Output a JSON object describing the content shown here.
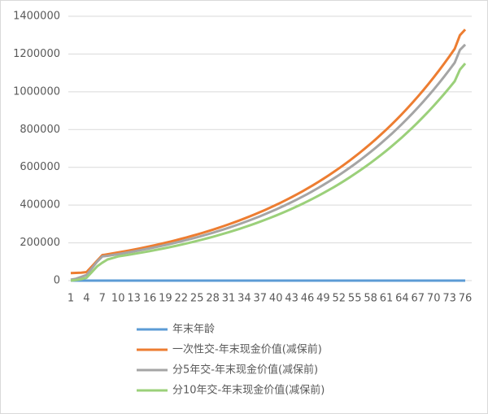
{
  "chart_data": {
    "type": "line",
    "categories": [
      1,
      null,
      null,
      4,
      null,
      null,
      7,
      null,
      null,
      10,
      null,
      null,
      13,
      null,
      null,
      16,
      null,
      null,
      19,
      null,
      null,
      22,
      null,
      null,
      25,
      null,
      null,
      28,
      null,
      null,
      31,
      null,
      null,
      34,
      null,
      null,
      37,
      null,
      null,
      40,
      null,
      null,
      43,
      null,
      null,
      46,
      null,
      null,
      49,
      null,
      null,
      52,
      null,
      null,
      55,
      null,
      null,
      58,
      null,
      null,
      61,
      null,
      null,
      64,
      null,
      null,
      67,
      null,
      null,
      70,
      null,
      null,
      73,
      null,
      null,
      76
    ],
    "ylim": [
      0,
      1400000
    ],
    "yticks": [
      0,
      200000,
      400000,
      600000,
      800000,
      1000000,
      1200000,
      1400000
    ],
    "grid": true,
    "series": [
      {
        "name": "年末年龄",
        "color": "#5b9bd5",
        "values": [
          1,
          2,
          3,
          4,
          5,
          6,
          7,
          8,
          9,
          10,
          11,
          12,
          13,
          14,
          15,
          16,
          17,
          18,
          19,
          20,
          21,
          22,
          23,
          24,
          25,
          26,
          27,
          28,
          29,
          30,
          31,
          32,
          33,
          34,
          35,
          36,
          37,
          38,
          39,
          40,
          41,
          42,
          43,
          44,
          45,
          46,
          47,
          48,
          49,
          50,
          51,
          52,
          53,
          54,
          55,
          56,
          57,
          58,
          59,
          60,
          61,
          62,
          63,
          64,
          65,
          66,
          67,
          68,
          69,
          70,
          71,
          72,
          73,
          74,
          75,
          76
        ]
      },
      {
        "name": "一次性交-年末现金价值(减保前)",
        "color": "#ed7d31",
        "values": [
          40000,
          41000,
          42000,
          45000,
          75000,
          105000,
          135000,
          139500,
          144200,
          149000,
          154000,
          159200,
          164500,
          170000,
          175700,
          181600,
          187700,
          194000,
          200500,
          207200,
          214100,
          221300,
          228700,
          236400,
          244300,
          252500,
          261000,
          269700,
          278700,
          288100,
          297700,
          307700,
          318000,
          328700,
          339700,
          351100,
          362800,
          375000,
          387500,
          400500,
          413900,
          427800,
          442100,
          456900,
          472200,
          488000,
          504400,
          521300,
          538700,
          556800,
          575400,
          594700,
          614600,
          635200,
          656500,
          678500,
          701200,
          724700,
          749000,
          774100,
          800000,
          826800,
          854500,
          883100,
          912700,
          943300,
          974900,
          1007600,
          1041300,
          1076200,
          1112300,
          1149500,
          1188000,
          1227800,
          1300000,
          1330000
        ]
      },
      {
        "name": "分5年交-年末现金价值(减保前)",
        "color": "#a5a5a5",
        "values": [
          5000,
          10000,
          20000,
          30000,
          65000,
          100000,
          128000,
          131100,
          135500,
          140100,
          144800,
          149600,
          154600,
          159800,
          165200,
          170700,
          176400,
          182400,
          188500,
          194800,
          201300,
          208000,
          215000,
          222200,
          229600,
          237400,
          245300,
          253500,
          262000,
          270800,
          279800,
          289200,
          298900,
          309000,
          319300,
          330000,
          341000,
          352500,
          364300,
          376500,
          389100,
          402100,
          415600,
          429500,
          443900,
          458700,
          474100,
          490000,
          506400,
          523400,
          540900,
          559000,
          577700,
          597100,
          617100,
          637800,
          659100,
          681200,
          704100,
          727700,
          752000,
          777200,
          803200,
          830100,
          857900,
          886700,
          916400,
          947100,
          978800,
          1011600,
          1045600,
          1080500,
          1116700,
          1154100,
          1222000,
          1250000
        ]
      },
      {
        "name": "分10年交-年末现金价值(减保前)",
        "color": "#9bd07a",
        "values": [
          0,
          3000,
          8000,
          15000,
          45000,
          75000,
          95000,
          112000,
          120000,
          128100,
          132400,
          136900,
          141500,
          146200,
          151100,
          156200,
          161400,
          166800,
          172400,
          178200,
          184100,
          190300,
          196700,
          203300,
          210100,
          217200,
          224500,
          231900,
          239700,
          247800,
          256000,
          264600,
          273500,
          282700,
          292100,
          301900,
          312000,
          322500,
          333300,
          344400,
          356000,
          367900,
          380200,
          392900,
          406100,
          419700,
          433800,
          448300,
          463300,
          478800,
          494800,
          511400,
          528600,
          546300,
          564600,
          583500,
          603000,
          623200,
          644100,
          665700,
          688000,
          711000,
          734900,
          759500,
          784900,
          811200,
          838400,
          866500,
          895500,
          925500,
          956600,
          988600,
          1021700,
          1055900,
          1118000,
          1150000
        ]
      }
    ]
  }
}
